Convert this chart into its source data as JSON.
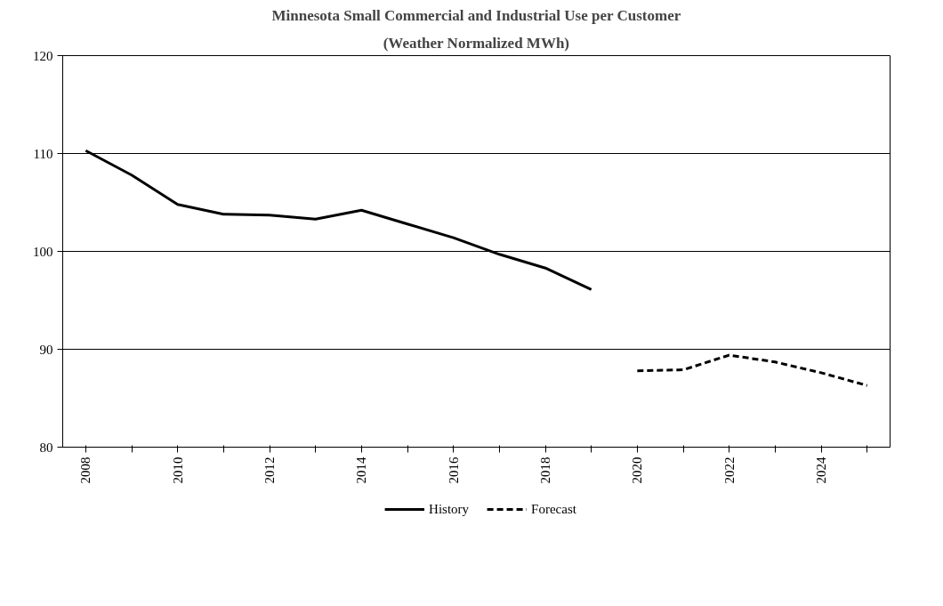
{
  "chart_data": {
    "type": "line",
    "title": "Minnesota Small Commercial and Industrial Use per Customer",
    "subtitle": "(Weather Normalized MWh)",
    "x": [
      2008,
      2009,
      2010,
      2011,
      2012,
      2013,
      2014,
      2015,
      2016,
      2017,
      2018,
      2019,
      2020,
      2021,
      2022,
      2023,
      2024,
      2025
    ],
    "series": [
      {
        "name": "History",
        "color": "#000000",
        "line_style": "solid",
        "values": [
          110.3,
          107.8,
          104.8,
          103.8,
          103.7,
          103.3,
          104.2,
          102.8,
          101.4,
          99.7,
          98.3,
          96.1,
          null,
          null,
          null,
          null,
          null,
          null
        ]
      },
      {
        "name": "Forecast",
        "color": "#000000",
        "line_style": "dashed",
        "values": [
          null,
          null,
          null,
          null,
          null,
          null,
          null,
          null,
          null,
          null,
          null,
          null,
          87.8,
          87.9,
          89.4,
          88.7,
          87.6,
          86.3
        ]
      }
    ],
    "xlim": [
      2007.5,
      2025.5
    ],
    "xticks": [
      2008,
      {
        "value": 2009,
        "label": null
      },
      2010,
      {
        "value": 2011,
        "label": null
      },
      2012,
      {
        "value": 2013,
        "label": null
      },
      2014,
      {
        "value": 2015,
        "label": null
      },
      2016,
      {
        "value": 2017,
        "label": null
      },
      2018,
      {
        "value": 2019,
        "label": null
      },
      2020,
      {
        "value": 2021,
        "label": null
      },
      2022,
      {
        "value": 2023,
        "label": null
      },
      2024,
      {
        "value": 2025,
        "label": null
      }
    ],
    "ylim": [
      80,
      120
    ],
    "yticks": [
      80,
      90,
      100,
      110,
      120
    ],
    "grid": "y",
    "legend": "bottom",
    "marker": "none"
  }
}
